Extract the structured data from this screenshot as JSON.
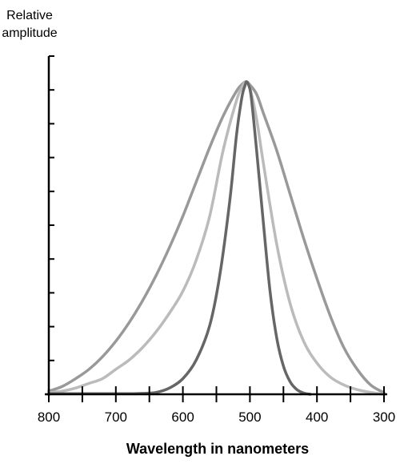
{
  "chart_data": {
    "type": "line",
    "title": "",
    "ylabel": "Relative amplitude",
    "xlabel": "Wavelength in nanometers",
    "x_reversed": true,
    "xlim": [
      800,
      300
    ],
    "ylim": [
      0,
      1.0
    ],
    "x_tick_labels": [
      "800",
      "700",
      "600",
      "500",
      "400",
      "300"
    ],
    "x_major_ticks": [
      800,
      700,
      600,
      500,
      400,
      300
    ],
    "x_minor_ticks": [
      750,
      650,
      550,
      450,
      350
    ],
    "y_tick_count": 10,
    "grid": false,
    "legend": "none",
    "series": [
      {
        "color": "#999999",
        "x": [
          800,
          780,
          760,
          740,
          720,
          700,
          680,
          660,
          640,
          620,
          600,
          580,
          560,
          540,
          520,
          510,
          505,
          500,
          490,
          480,
          460,
          440,
          420,
          400,
          380,
          360,
          340,
          320,
          300
        ],
        "y": [
          0.01,
          0.025,
          0.05,
          0.08,
          0.12,
          0.17,
          0.23,
          0.3,
          0.38,
          0.47,
          0.57,
          0.68,
          0.79,
          0.89,
          0.97,
          0.995,
          1.0,
          0.99,
          0.96,
          0.9,
          0.78,
          0.64,
          0.5,
          0.37,
          0.25,
          0.15,
          0.08,
          0.03,
          0.005
        ]
      },
      {
        "color": "#bbbbbb",
        "x": [
          800,
          780,
          760,
          740,
          720,
          700,
          680,
          660,
          640,
          620,
          600,
          580,
          560,
          540,
          520,
          510,
          505,
          500,
          490,
          480,
          460,
          440,
          420,
          400,
          380,
          360,
          340,
          320,
          300
        ],
        "y": [
          0.005,
          0.01,
          0.02,
          0.035,
          0.05,
          0.08,
          0.11,
          0.15,
          0.2,
          0.26,
          0.33,
          0.43,
          0.57,
          0.78,
          0.94,
          0.99,
          1.0,
          0.98,
          0.88,
          0.74,
          0.48,
          0.29,
          0.17,
          0.1,
          0.055,
          0.03,
          0.015,
          0.006,
          0.0
        ]
      },
      {
        "color": "#666666",
        "x": [
          800,
          760,
          720,
          680,
          660,
          640,
          620,
          600,
          580,
          560,
          545,
          530,
          520,
          512,
          507,
          505,
          502,
          498,
          490,
          480,
          470,
          460,
          450,
          440,
          430,
          420,
          410
        ],
        "y": [
          0.002,
          0.002,
          0.002,
          0.002,
          0.003,
          0.006,
          0.02,
          0.05,
          0.11,
          0.22,
          0.38,
          0.62,
          0.83,
          0.95,
          0.99,
          1.0,
          0.99,
          0.95,
          0.78,
          0.55,
          0.33,
          0.18,
          0.09,
          0.04,
          0.015,
          0.004,
          0.0
        ]
      }
    ]
  }
}
